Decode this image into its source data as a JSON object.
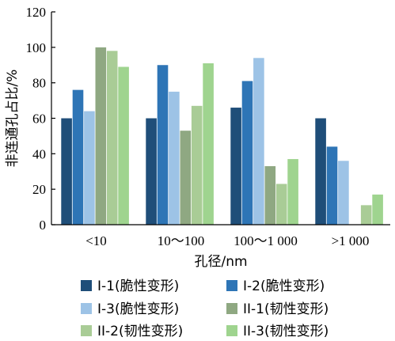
{
  "chart_data": {
    "type": "bar",
    "title": "",
    "xlabel": "孔径/nm",
    "ylabel": "非连通孔占比/%",
    "ylim": [
      0,
      120
    ],
    "yticks": [
      "0",
      "20",
      "40",
      "60",
      "80",
      "100",
      "120"
    ],
    "categories": [
      "<10",
      "10～100",
      "100～1 000",
      ">1 000"
    ],
    "grid": false,
    "legend_position": "bottom",
    "series": [
      {
        "name": "I-1(脆性变形)",
        "color": "#1f4e79",
        "values": [
          60,
          60,
          66,
          60
        ]
      },
      {
        "name": "I-2(脆性变形)",
        "color": "#2e75b6",
        "values": [
          76,
          90,
          81,
          44
        ]
      },
      {
        "name": "I-3(脆性变形)",
        "color": "#9dc3e6",
        "values": [
          64,
          75,
          94,
          36
        ]
      },
      {
        "name": "II-1(韧性变形)",
        "color": "#8fa882",
        "values": [
          100,
          53,
          33,
          0
        ]
      },
      {
        "name": "II-2(韧性变形)",
        "color": "#a9cc96",
        "values": [
          98,
          67,
          23,
          11
        ]
      },
      {
        "name": "II-3(韧性变形)",
        "color": "#9fd48f",
        "values": [
          89,
          91,
          37,
          17
        ]
      }
    ]
  }
}
